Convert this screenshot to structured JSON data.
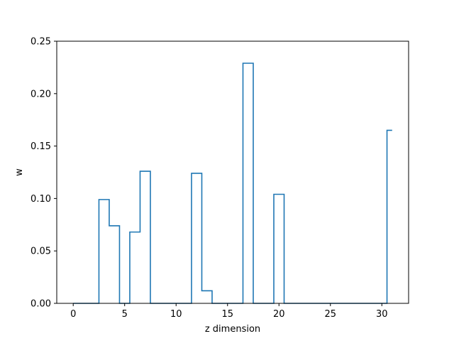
{
  "chart_data": {
    "type": "line",
    "drawstyle": "steps-mid",
    "xlabel": "z dimension",
    "ylabel": "w",
    "xlim": [
      -1.6,
      32.6
    ],
    "ylim": [
      0,
      0.25
    ],
    "x_ticks": [
      "0",
      "5",
      "10",
      "15",
      "20",
      "25",
      "30"
    ],
    "y_ticks": [
      "0.00",
      "0.05",
      "0.10",
      "0.15",
      "0.20",
      "0.25"
    ],
    "grid": false,
    "series": [
      {
        "color": "#1f77b4",
        "x": [
          0,
          1,
          2,
          3,
          4,
          5,
          6,
          7,
          8,
          9,
          10,
          11,
          12,
          13,
          14,
          15,
          16,
          17,
          18,
          19,
          20,
          21,
          22,
          23,
          24,
          25,
          26,
          27,
          28,
          29,
          30,
          31
        ],
        "y": [
          0,
          0,
          0,
          0.099,
          0.074,
          0,
          0.068,
          0.126,
          0,
          0,
          0,
          0,
          0.124,
          0.012,
          0,
          0,
          0,
          0.229,
          0,
          0,
          0.104,
          0,
          0,
          0,
          0,
          0,
          0,
          0,
          0,
          0,
          0,
          0.165
        ]
      }
    ]
  }
}
